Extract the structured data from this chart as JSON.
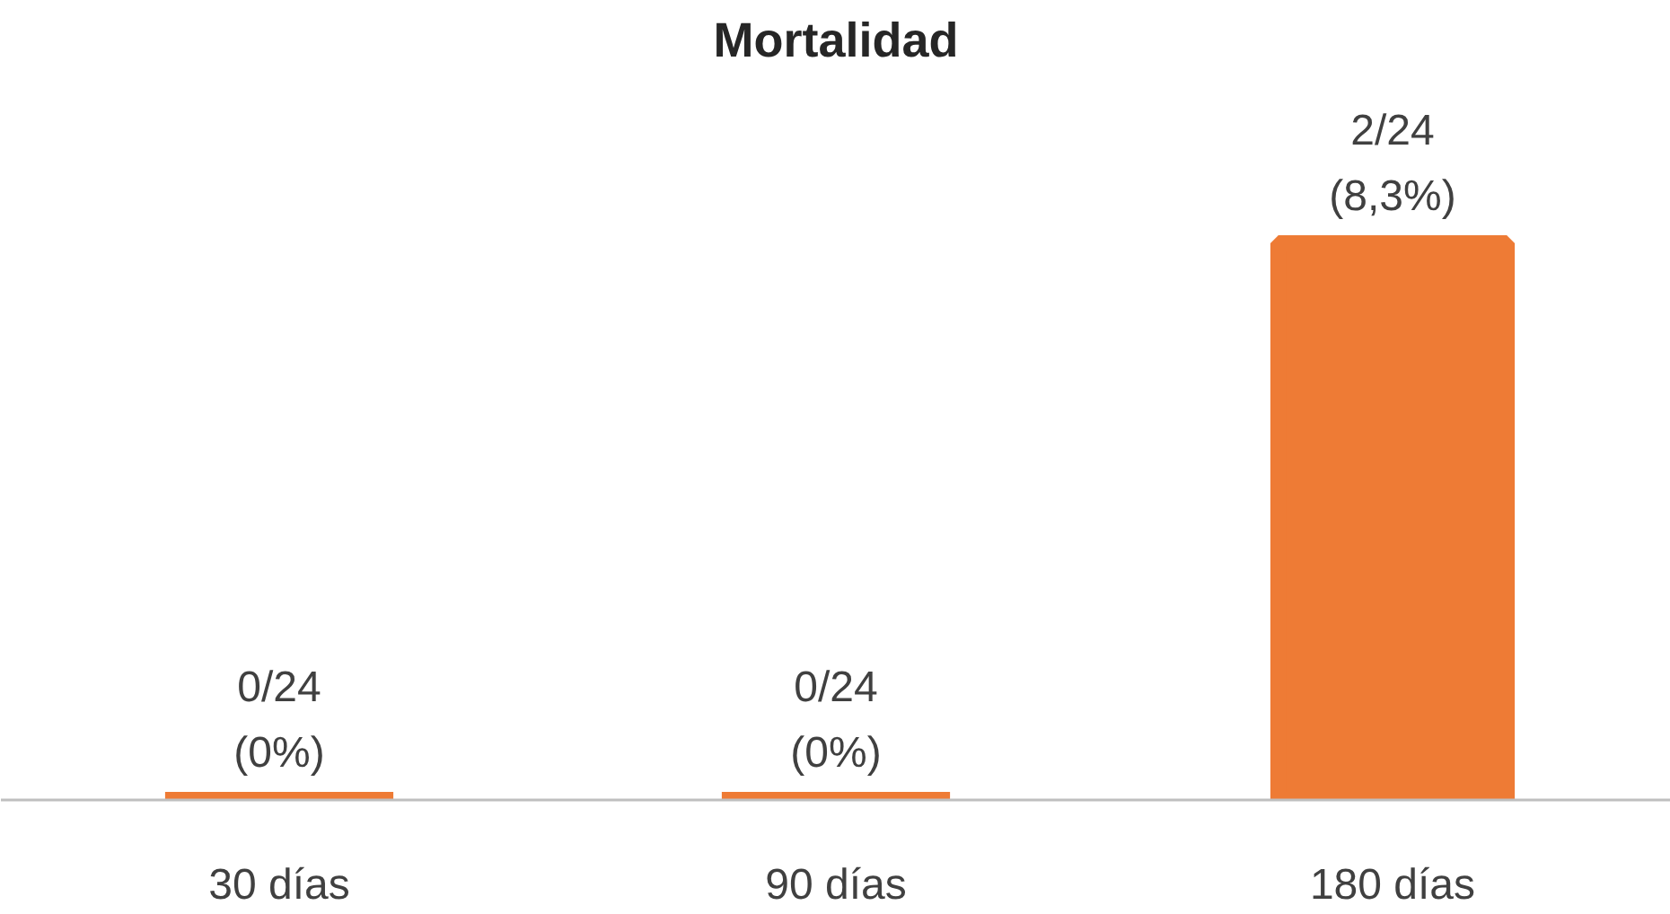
{
  "chart_data": {
    "type": "bar",
    "title": "Mortalidad",
    "categories": [
      "30 días",
      "90 días",
      "180 días"
    ],
    "values": [
      0,
      0,
      8.3
    ],
    "value_labels": [
      "0/24\n(0%)",
      "0/24\n(0%)",
      "2/24\n(8,3%)"
    ],
    "color": "#ee7b35",
    "grid": false,
    "tick_labels": "x"
  }
}
